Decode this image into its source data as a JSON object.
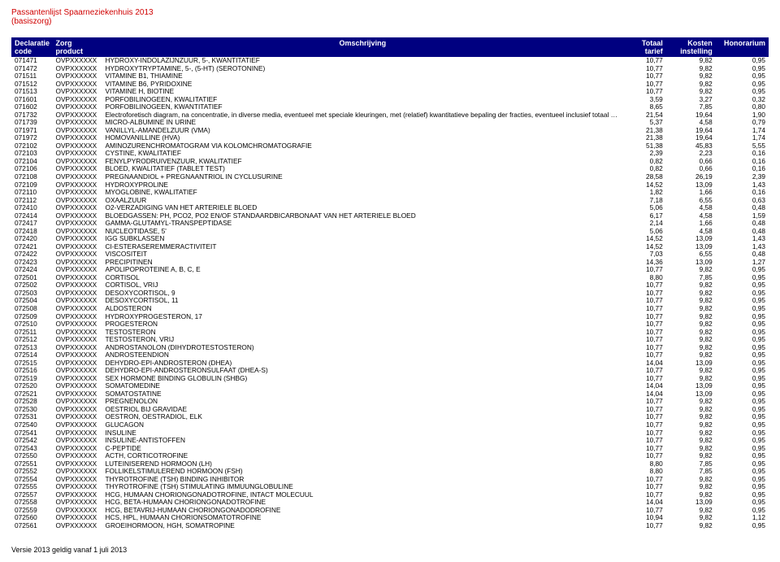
{
  "doc": {
    "title": "Passantenlijst Spaarneziekenhuis 2013",
    "subtitle": "(basiszorg)",
    "footer": "Versie 2013 geldig vanaf 1 juli 2013"
  },
  "header": {
    "code_l1": "Declaratie",
    "code_l2": "code",
    "prod_l1": "Zorg",
    "prod_l2": "product",
    "desc": "Omschrijving",
    "tot_l1": "Totaal",
    "tot_l2": "tarief",
    "kost_l1": "Kosten",
    "kost_l2": "instelling",
    "hon": "Honorarium"
  },
  "table": {
    "background_header": "#000080",
    "header_text_color": "#ffffff",
    "row_text_color": "#000000",
    "title_color": "#d00000",
    "font_family": "Verdana",
    "header_fontsize_pt": 7,
    "row_fontsize_pt": 6.5,
    "columns": [
      "Declaratie code",
      "Zorg product",
      "Omschrijving",
      "Totaal tarief",
      "Kosten instelling",
      "Honorarium"
    ],
    "col_align": [
      "left",
      "left",
      "left",
      "right",
      "right",
      "right"
    ]
  },
  "rows": [
    {
      "code": "071471",
      "prod": "OVPXXXXXX",
      "desc": "HYDROXY-INDOLAZIJNZUUR, 5-, KWANTITATIEF",
      "t": "10,77",
      "k": "9,82",
      "h": "0,95"
    },
    {
      "code": "071472",
      "prod": "OVPXXXXXX",
      "desc": "HYDROXYTRYPTAMINE, 5-, (5-HT) (SEROTONINE)",
      "t": "10,77",
      "k": "9,82",
      "h": "0,95"
    },
    {
      "code": "071511",
      "prod": "OVPXXXXXX",
      "desc": "VITAMINE B1, THIAMINE",
      "t": "10,77",
      "k": "9,82",
      "h": "0,95"
    },
    {
      "code": "071512",
      "prod": "OVPXXXXXX",
      "desc": "VITAMINE B6, PYRIDOXINE",
      "t": "10,77",
      "k": "9,82",
      "h": "0,95"
    },
    {
      "code": "071513",
      "prod": "OVPXXXXXX",
      "desc": "VITAMINE H, BIOTINE",
      "t": "10,77",
      "k": "9,82",
      "h": "0,95"
    },
    {
      "code": "071601",
      "prod": "OVPXXXXXX",
      "desc": "PORFOBILINOGEEN, KWALITATIEF",
      "t": "3,59",
      "k": "3,27",
      "h": "0,32"
    },
    {
      "code": "071602",
      "prod": "OVPXXXXXX",
      "desc": "PORFOBILINOGEEN, KWANTITATIEF",
      "t": "8,65",
      "k": "7,85",
      "h": "0,80"
    },
    {
      "code": "071732",
      "prod": "OVPXXXXXX",
      "desc": "Electroforetisch diagram, na concentratie, in diverse media, eventueel met speciale kleuringen, met (relatief) kwantitatieve bepaling der fracties, eventueel inclusief totaal eiwitbepaling.",
      "t": "21,54",
      "k": "19,64",
      "h": "1,90"
    },
    {
      "code": "071739",
      "prod": "OVPXXXXXX",
      "desc": "MICRO-ALBUMINE IN URINE",
      "t": "5,37",
      "k": "4,58",
      "h": "0,79"
    },
    {
      "code": "071971",
      "prod": "OVPXXXXXX",
      "desc": "VANILLYL-AMANDELZUUR (VMA)",
      "t": "21,38",
      "k": "19,64",
      "h": "1,74"
    },
    {
      "code": "071972",
      "prod": "OVPXXXXXX",
      "desc": "HOMOVANILLINE (HVA)",
      "t": "21,38",
      "k": "19,64",
      "h": "1,74"
    },
    {
      "code": "072102",
      "prod": "OVPXXXXXX",
      "desc": "AMINOZURENCHROMATOGRAM VIA KOLOMCHROMATOGRAFIE",
      "t": "51,38",
      "k": "45,83",
      "h": "5,55"
    },
    {
      "code": "072103",
      "prod": "OVPXXXXXX",
      "desc": "CYSTINE, KWALITATIEF",
      "t": "2,39",
      "k": "2,23",
      "h": "0,16"
    },
    {
      "code": "072104",
      "prod": "OVPXXXXXX",
      "desc": "FENYLPYRODRUIVENZUUR, KWALITATIEF",
      "t": "0,82",
      "k": "0,66",
      "h": "0,16"
    },
    {
      "code": "072106",
      "prod": "OVPXXXXXX",
      "desc": "BLOED, KWALITATIEF (TABLET TEST)",
      "t": "0,82",
      "k": "0,66",
      "h": "0,16"
    },
    {
      "code": "072108",
      "prod": "OVPXXXXXX",
      "desc": "PREGNAANDIOL + PREGNAANTRIOL IN CYCLUSURINE",
      "t": "28,58",
      "k": "26,19",
      "h": "2,39"
    },
    {
      "code": "072109",
      "prod": "OVPXXXXXX",
      "desc": "HYDROXYPROLINE",
      "t": "14,52",
      "k": "13,09",
      "h": "1,43"
    },
    {
      "code": "072110",
      "prod": "OVPXXXXXX",
      "desc": "MYOGLOBINE, KWALITATIEF",
      "t": "1,82",
      "k": "1,66",
      "h": "0,16"
    },
    {
      "code": "072112",
      "prod": "OVPXXXXXX",
      "desc": "OXAALZUUR",
      "t": "7,18",
      "k": "6,55",
      "h": "0,63"
    },
    {
      "code": "072410",
      "prod": "OVPXXXXXX",
      "desc": "O2-VERZADIGING VAN HET ARTERIELE BLOED",
      "t": "5,06",
      "k": "4,58",
      "h": "0,48"
    },
    {
      "code": "072414",
      "prod": "OVPXXXXXX",
      "desc": "BLOEDGASSEN: PH, PCO2, PO2 EN/OF STANDAARDBICARBONAAT VAN HET ARTERIELE BLOED",
      "t": "6,17",
      "k": "4,58",
      "h": "1,59"
    },
    {
      "code": "072417",
      "prod": "OVPXXXXXX",
      "desc": "GAMMA-GLUTAMYL-TRANSPEPTIDASE",
      "t": "2,14",
      "k": "1,66",
      "h": "0,48"
    },
    {
      "code": "072418",
      "prod": "OVPXXXXXX",
      "desc": "NUCLEOTIDASE, 5'",
      "t": "5,06",
      "k": "4,58",
      "h": "0,48"
    },
    {
      "code": "072420",
      "prod": "OVPXXXXXX",
      "desc": "IGG SUBKLASSEN",
      "t": "14,52",
      "k": "13,09",
      "h": "1,43"
    },
    {
      "code": "072421",
      "prod": "OVPXXXXXX",
      "desc": "CI-ESTERASEREMMERACTIVITEIT",
      "t": "14,52",
      "k": "13,09",
      "h": "1,43"
    },
    {
      "code": "072422",
      "prod": "OVPXXXXXX",
      "desc": "VISCOSITEIT",
      "t": "7,03",
      "k": "6,55",
      "h": "0,48"
    },
    {
      "code": "072423",
      "prod": "OVPXXXXXX",
      "desc": "PRECIPITINEN",
      "t": "14,36",
      "k": "13,09",
      "h": "1,27"
    },
    {
      "code": "072424",
      "prod": "OVPXXXXXX",
      "desc": "APOLIPOPROTEINE A, B, C, E",
      "t": "10,77",
      "k": "9,82",
      "h": "0,95"
    },
    {
      "code": "072501",
      "prod": "OVPXXXXXX",
      "desc": "CORTISOL",
      "t": "8,80",
      "k": "7,85",
      "h": "0,95"
    },
    {
      "code": "072502",
      "prod": "OVPXXXXXX",
      "desc": "CORTISOL, VRIJ",
      "t": "10,77",
      "k": "9,82",
      "h": "0,95"
    },
    {
      "code": "072503",
      "prod": "OVPXXXXXX",
      "desc": "DESOXYCORTISOL, 9",
      "t": "10,77",
      "k": "9,82",
      "h": "0,95"
    },
    {
      "code": "072504",
      "prod": "OVPXXXXXX",
      "desc": "DESOXYCORTISOL, 11",
      "t": "10,77",
      "k": "9,82",
      "h": "0,95"
    },
    {
      "code": "072508",
      "prod": "OVPXXXXXX",
      "desc": "ALDOSTERON",
      "t": "10,77",
      "k": "9,82",
      "h": "0,95"
    },
    {
      "code": "072509",
      "prod": "OVPXXXXXX",
      "desc": "HYDROXYPROGESTERON, 17",
      "t": "10,77",
      "k": "9,82",
      "h": "0,95"
    },
    {
      "code": "072510",
      "prod": "OVPXXXXXX",
      "desc": "PROGESTERON",
      "t": "10,77",
      "k": "9,82",
      "h": "0,95"
    },
    {
      "code": "072511",
      "prod": "OVPXXXXXX",
      "desc": "TESTOSTERON",
      "t": "10,77",
      "k": "9,82",
      "h": "0,95"
    },
    {
      "code": "072512",
      "prod": "OVPXXXXXX",
      "desc": "TESTOSTERON, VRIJ",
      "t": "10,77",
      "k": "9,82",
      "h": "0,95"
    },
    {
      "code": "072513",
      "prod": "OVPXXXXXX",
      "desc": "ANDROSTANOLON (DIHYDROTESTOSTERON)",
      "t": "10,77",
      "k": "9,82",
      "h": "0,95"
    },
    {
      "code": "072514",
      "prod": "OVPXXXXXX",
      "desc": "ANDROSTEENDION",
      "t": "10,77",
      "k": "9,82",
      "h": "0,95"
    },
    {
      "code": "072515",
      "prod": "OVPXXXXXX",
      "desc": "DEHYDRO-EPI-ANDROSTERON (DHEA)",
      "t": "14,04",
      "k": "13,09",
      "h": "0,95"
    },
    {
      "code": "072516",
      "prod": "OVPXXXXXX",
      "desc": "DEHYDRO-EPI-ANDROSTERONSULFAAT (DHEA-S)",
      "t": "10,77",
      "k": "9,82",
      "h": "0,95"
    },
    {
      "code": "072519",
      "prod": "OVPXXXXXX",
      "desc": "SEX HORMONE BINDING GLOBULIN (SHBG)",
      "t": "10,77",
      "k": "9,82",
      "h": "0,95"
    },
    {
      "code": "072520",
      "prod": "OVPXXXXXX",
      "desc": "SOMATOMEDINE",
      "t": "14,04",
      "k": "13,09",
      "h": "0,95"
    },
    {
      "code": "072521",
      "prod": "OVPXXXXXX",
      "desc": "SOMATOSTATINE",
      "t": "14,04",
      "k": "13,09",
      "h": "0,95"
    },
    {
      "code": "072528",
      "prod": "OVPXXXXXX",
      "desc": "PREGNENOLON",
      "t": "10,77",
      "k": "9,82",
      "h": "0,95"
    },
    {
      "code": "072530",
      "prod": "OVPXXXXXX",
      "desc": "OESTRIOL BIJ GRAVIDAE",
      "t": "10,77",
      "k": "9,82",
      "h": "0,95"
    },
    {
      "code": "072531",
      "prod": "OVPXXXXXX",
      "desc": "OESTRON, OESTRADIOL, ELK",
      "t": "10,77",
      "k": "9,82",
      "h": "0,95"
    },
    {
      "code": "072540",
      "prod": "OVPXXXXXX",
      "desc": "GLUCAGON",
      "t": "10,77",
      "k": "9,82",
      "h": "0,95"
    },
    {
      "code": "072541",
      "prod": "OVPXXXXXX",
      "desc": "INSULINE",
      "t": "10,77",
      "k": "9,82",
      "h": "0,95"
    },
    {
      "code": "072542",
      "prod": "OVPXXXXXX",
      "desc": "INSULINE-ANTISTOFFEN",
      "t": "10,77",
      "k": "9,82",
      "h": "0,95"
    },
    {
      "code": "072543",
      "prod": "OVPXXXXXX",
      "desc": "C-PEPTIDE",
      "t": "10,77",
      "k": "9,82",
      "h": "0,95"
    },
    {
      "code": "072550",
      "prod": "OVPXXXXXX",
      "desc": "ACTH, CORTICOTROFINE",
      "t": "10,77",
      "k": "9,82",
      "h": "0,95"
    },
    {
      "code": "072551",
      "prod": "OVPXXXXXX",
      "desc": "LUTEINISEREND HORMOON (LH)",
      "t": "8,80",
      "k": "7,85",
      "h": "0,95"
    },
    {
      "code": "072552",
      "prod": "OVPXXXXXX",
      "desc": "FOLLIKELSTIMULEREND HORMOON (FSH)",
      "t": "8,80",
      "k": "7,85",
      "h": "0,95"
    },
    {
      "code": "072554",
      "prod": "OVPXXXXXX",
      "desc": "THYROTROFINE (TSH) BINDING INHIBITOR",
      "t": "10,77",
      "k": "9,82",
      "h": "0,95"
    },
    {
      "code": "072555",
      "prod": "OVPXXXXXX",
      "desc": "THYROTROFINE (TSH) STIMULATING IMMUUNGLOBULINE",
      "t": "10,77",
      "k": "9,82",
      "h": "0,95"
    },
    {
      "code": "072557",
      "prod": "OVPXXXXXX",
      "desc": "HCG, HUMAAN CHORIONGONADOTROFINE, INTACT MOLECUUL",
      "t": "10,77",
      "k": "9,82",
      "h": "0,95"
    },
    {
      "code": "072558",
      "prod": "OVPXXXXXX",
      "desc": "HCG, BETA-HUMAAN CHORIONGONADOTROFINE",
      "t": "14,04",
      "k": "13,09",
      "h": "0,95"
    },
    {
      "code": "072559",
      "prod": "OVPXXXXXX",
      "desc": "HCG, BETAVRIJ-HUMAAN CHORIONGONADODROFINE",
      "t": "10,77",
      "k": "9,82",
      "h": "0,95"
    },
    {
      "code": "072560",
      "prod": "OVPXXXXXX",
      "desc": "HCS, HPL, HUMAAN CHORIONSOMATOTROFINE",
      "t": "10,94",
      "k": "9,82",
      "h": "1,12"
    },
    {
      "code": "072561",
      "prod": "OVPXXXXXX",
      "desc": "GROEIHORMOON, HGH, SOMATROPINE",
      "t": "10,77",
      "k": "9,82",
      "h": "0,95"
    }
  ]
}
